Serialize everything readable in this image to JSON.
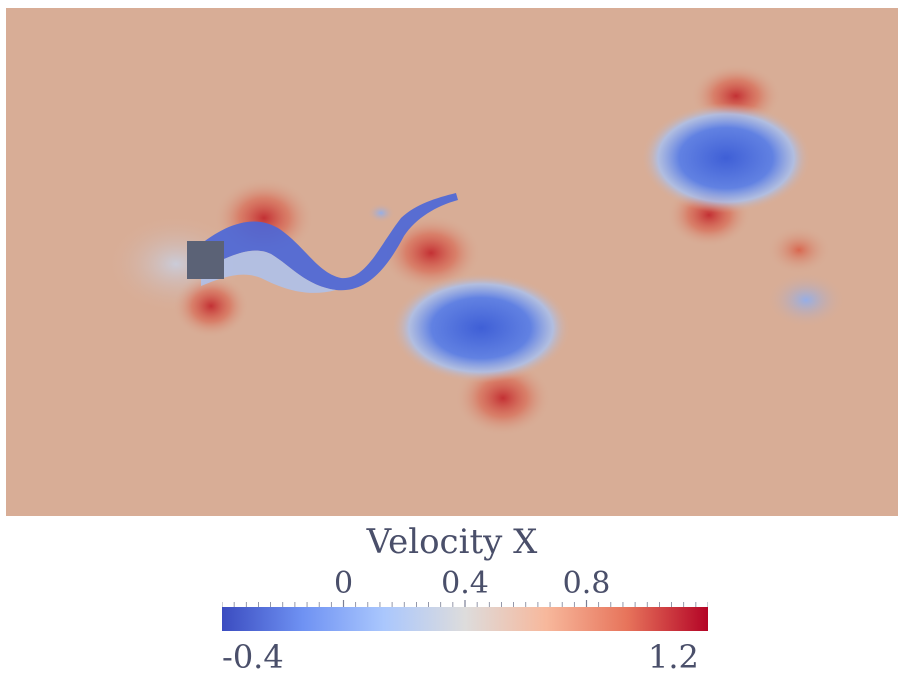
{
  "visualization": {
    "field": "Velocity X",
    "obstacle": "square-cylinder",
    "background_color": "#d8ad96"
  },
  "colorbar": {
    "title": "Velocity X",
    "min_label": "-0.4",
    "max_label": "1.2",
    "min_value": -0.4,
    "max_value": 1.2,
    "ticks": [
      {
        "label": "0",
        "value": 0
      },
      {
        "label": "0.4",
        "value": 0.4
      },
      {
        "label": "0.8",
        "value": 0.8
      }
    ],
    "colormap": [
      "#3b4cc0",
      "#6f92f3",
      "#aac7fd",
      "#dddcdc",
      "#f7b89c",
      "#e7745b",
      "#b40426"
    ]
  }
}
